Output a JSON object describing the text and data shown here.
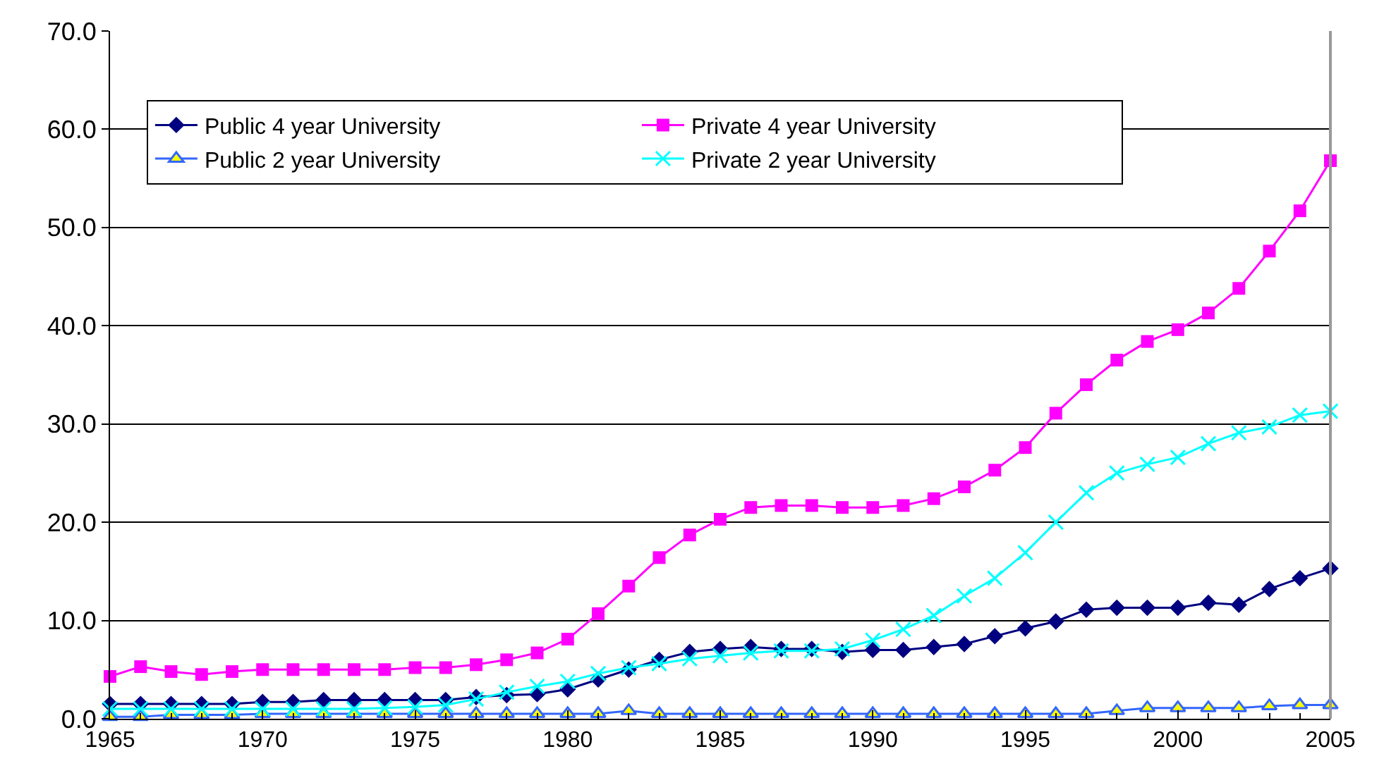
{
  "chart_data": {
    "type": "line",
    "x": [
      1965,
      1966,
      1967,
      1968,
      1969,
      1970,
      1971,
      1972,
      1973,
      1974,
      1975,
      1976,
      1977,
      1978,
      1979,
      1980,
      1981,
      1982,
      1983,
      1984,
      1985,
      1986,
      1987,
      1988,
      1989,
      1990,
      1991,
      1992,
      1993,
      1994,
      1995,
      1996,
      1997,
      1998,
      1999,
      2000,
      2001,
      2002,
      2003,
      2004,
      2005
    ],
    "series": [
      {
        "name": "Public 4 year University",
        "color": "#000080",
        "marker": "diamond",
        "values": [
          1.5,
          1.5,
          1.5,
          1.5,
          1.5,
          1.7,
          1.7,
          1.9,
          1.9,
          1.9,
          1.9,
          1.9,
          2.2,
          2.4,
          2.5,
          3.0,
          4.0,
          5.0,
          6.0,
          6.8,
          7.1,
          7.3,
          7.1,
          7.1,
          6.8,
          7.0,
          7.0,
          7.3,
          7.6,
          8.4,
          9.2,
          9.9,
          11.1,
          11.3,
          11.3,
          11.3,
          11.8,
          11.6,
          13.2,
          14.3,
          15.3
        ]
      },
      {
        "name": "Private 4 year University",
        "color": "#ff00ff",
        "marker": "square",
        "values": [
          4.3,
          5.3,
          4.8,
          4.5,
          4.8,
          5.0,
          5.0,
          5.0,
          5.0,
          5.0,
          5.2,
          5.2,
          5.5,
          6.0,
          6.7,
          8.1,
          10.7,
          13.5,
          16.4,
          18.7,
          20.3,
          21.5,
          21.7,
          21.7,
          21.5,
          21.5,
          21.7,
          22.4,
          23.6,
          25.3,
          27.6,
          31.1,
          34.0,
          36.5,
          38.4,
          39.6,
          41.3,
          43.8,
          47.6,
          51.7,
          56.8
        ]
      },
      {
        "name": "Public 2 year University",
        "color": "#3366ff",
        "marker": "triangle",
        "values": [
          0.2,
          0.2,
          0.4,
          0.4,
          0.4,
          0.5,
          0.5,
          0.5,
          0.5,
          0.5,
          0.5,
          0.5,
          0.5,
          0.5,
          0.5,
          0.5,
          0.5,
          0.8,
          0.5,
          0.5,
          0.5,
          0.5,
          0.5,
          0.5,
          0.5,
          0.5,
          0.5,
          0.5,
          0.5,
          0.5,
          0.5,
          0.5,
          0.5,
          0.8,
          1.1,
          1.1,
          1.1,
          1.1,
          1.3,
          1.4,
          1.4
        ]
      },
      {
        "name": "Private 2 year University",
        "color": "#00ffff",
        "marker": "cross",
        "values": [
          1.0,
          1.0,
          1.0,
          1.0,
          1.0,
          1.0,
          1.0,
          1.0,
          1.0,
          1.1,
          1.2,
          1.4,
          2.0,
          2.7,
          3.3,
          3.8,
          4.6,
          5.2,
          5.6,
          6.1,
          6.4,
          6.7,
          6.9,
          6.9,
          7.1,
          8.0,
          9.1,
          10.5,
          12.5,
          14.3,
          16.9,
          20.0,
          23.0,
          25.0,
          25.9,
          26.6,
          28.0,
          29.1,
          29.7,
          30.9,
          31.3
        ]
      }
    ],
    "xlim": [
      1965,
      2005
    ],
    "xticks": [
      1965,
      1970,
      1975,
      1980,
      1985,
      1990,
      1995,
      2000,
      2005
    ],
    "ylim": [
      0,
      70
    ],
    "yticks": [
      {
        "value": 0,
        "label": "0.0"
      },
      {
        "value": 10,
        "label": "10.0"
      },
      {
        "value": 20,
        "label": "20.0"
      },
      {
        "value": 30,
        "label": "30.0"
      },
      {
        "value": 40,
        "label": "40.0"
      },
      {
        "value": 50,
        "label": "50.0"
      },
      {
        "value": 60,
        "label": "60.0"
      },
      {
        "value": 70,
        "label": "70.0"
      }
    ],
    "grid": "y",
    "legend": "top left",
    "line_style": "solid"
  }
}
